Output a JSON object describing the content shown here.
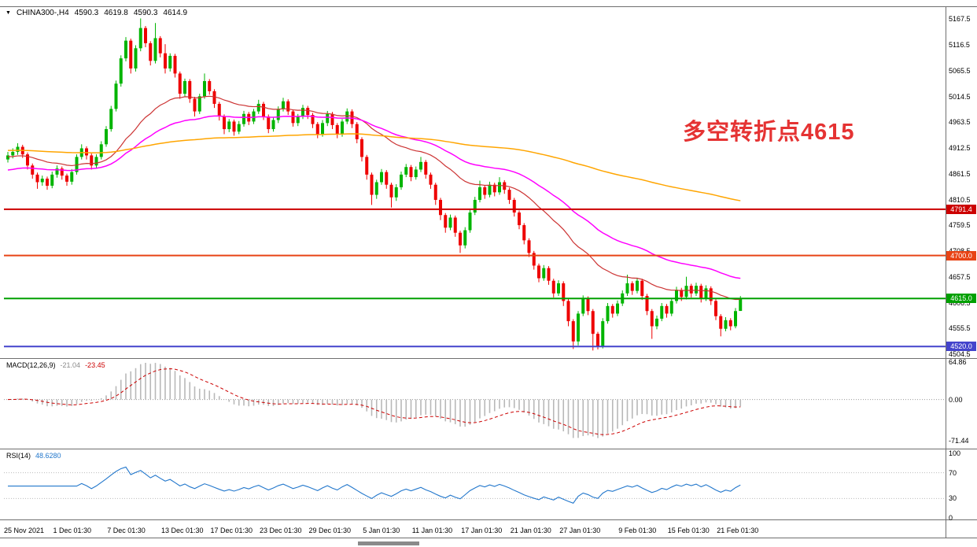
{
  "header": {
    "dropdown_glyph": "▼",
    "display": "CHINA300-,H4",
    "open": "4590.3",
    "high": "4619.8",
    "low": "4590.3",
    "close": "4614.9"
  },
  "annotation": {
    "text": "多空转折点4615",
    "color": "#e53333"
  },
  "indicators": {
    "macd": {
      "name": "MACD(12,26,9)",
      "main_value": "-21.04",
      "signal_value": "-23.45",
      "fast": 12,
      "slow": 26,
      "signal": 9,
      "y_ticks": [
        64.86,
        0,
        -71.44
      ]
    },
    "rsi": {
      "name": "RSI(14)",
      "value": "48.6280",
      "period": 14,
      "levels": [
        70,
        30
      ],
      "y_ticks": [
        100,
        70,
        30,
        0
      ]
    }
  },
  "price_axis": {
    "ticks": [
      5167.5,
      5116.5,
      5065.5,
      5014.5,
      4963.5,
      4912.5,
      4861.5,
      4810.5,
      4759.5,
      4708.5,
      4657.5,
      4606.5,
      4555.5,
      4504.5
    ]
  },
  "levels": [
    {
      "price": 4791.4,
      "label": "4791.4",
      "color": "#cc0000"
    },
    {
      "price": 4700.0,
      "label": "4700.0",
      "color": "#e84315"
    },
    {
      "price": 4615.0,
      "label": "4615.0",
      "color": "#00a000"
    },
    {
      "price": 4520.0,
      "label": "4520.0",
      "color": "#4444cc"
    }
  ],
  "time_axis": {
    "ticks": [
      {
        "i": 0,
        "label": "25 Nov 2021"
      },
      {
        "i": 10,
        "label": "1 Dec 01:30"
      },
      {
        "i": 21,
        "label": "7 Dec 01:30"
      },
      {
        "i": 32,
        "label": "13 Dec 01:30"
      },
      {
        "i": 42,
        "label": "17 Dec 01:30"
      },
      {
        "i": 52,
        "label": "23 Dec 01:30"
      },
      {
        "i": 62,
        "label": "29 Dec 01:30"
      },
      {
        "i": 73,
        "label": "5 Jan 01:30"
      },
      {
        "i": 83,
        "label": "11 Jan 01:30"
      },
      {
        "i": 93,
        "label": "17 Jan 01:30"
      },
      {
        "i": 103,
        "label": "21 Jan 01:30"
      },
      {
        "i": 113,
        "label": "27 Jan 01:30"
      },
      {
        "i": 125,
        "label": "9 Feb 01:30"
      },
      {
        "i": 135,
        "label": "15 Feb 01:30"
      },
      {
        "i": 145,
        "label": "21 Feb 01:30"
      }
    ]
  },
  "scrollbar": {
    "thumb_left": 455,
    "thumb_width": 78
  },
  "chart_data": {
    "type": "candlestick",
    "title": "CHINA300-,H4",
    "ylim": [
      4497,
      5193
    ],
    "colors": {
      "up": "#00b400",
      "down": "#ee0000",
      "macd_hist": "#b8b8b8",
      "macd_signal": "#cc0000",
      "rsi": "#2277cc"
    },
    "moving_averages": [
      {
        "name": "ma-fast",
        "period": 30,
        "seed": 4895,
        "color": "#cc3333",
        "width": 1.2
      },
      {
        "name": "ma-medium",
        "period": 55,
        "seed": 4868,
        "color": "#ff00ff",
        "width": 1.5
      },
      {
        "name": "ma-slow",
        "period": 220,
        "seed": 4908,
        "color": "#ffa500",
        "width": 1.5
      }
    ],
    "candles": [
      [
        4890,
        4905,
        4884,
        4898
      ],
      [
        4898,
        4912,
        4892,
        4905
      ],
      [
        4905,
        4922,
        4899,
        4915
      ],
      [
        4915,
        4919,
        4893,
        4900
      ],
      [
        4900,
        4904,
        4870,
        4878
      ],
      [
        4878,
        4882,
        4852,
        4860
      ],
      [
        4860,
        4864,
        4832,
        4845
      ],
      [
        4845,
        4858,
        4838,
        4852
      ],
      [
        4852,
        4856,
        4830,
        4838
      ],
      [
        4838,
        4866,
        4833,
        4860
      ],
      [
        4860,
        4878,
        4854,
        4872
      ],
      [
        4872,
        4876,
        4850,
        4858
      ],
      [
        4858,
        4862,
        4838,
        4846
      ],
      [
        4846,
        4871,
        4840,
        4865
      ],
      [
        4865,
        4900,
        4860,
        4895
      ],
      [
        4895,
        4920,
        4890,
        4912
      ],
      [
        4912,
        4916,
        4890,
        4898
      ],
      [
        4898,
        4902,
        4870,
        4878
      ],
      [
        4878,
        4900,
        4872,
        4895
      ],
      [
        4895,
        4926,
        4890,
        4920
      ],
      [
        4920,
        4956,
        4915,
        4950
      ],
      [
        4950,
        4996,
        4945,
        4990
      ],
      [
        4990,
        5046,
        4985,
        5040
      ],
      [
        5040,
        5096,
        5034,
        5090
      ],
      [
        5090,
        5132,
        5084,
        5125
      ],
      [
        5125,
        5129,
        5060,
        5070
      ],
      [
        5070,
        5116,
        5064,
        5110
      ],
      [
        5110,
        5169,
        5104,
        5150
      ],
      [
        5150,
        5154,
        5112,
        5120
      ],
      [
        5120,
        5124,
        5076,
        5085
      ],
      [
        5085,
        5160,
        5080,
        5130
      ],
      [
        5130,
        5134,
        5092,
        5100
      ],
      [
        5100,
        5118,
        5060,
        5070
      ],
      [
        5070,
        5100,
        5064,
        5095
      ],
      [
        5095,
        5099,
        5052,
        5060
      ],
      [
        5060,
        5064,
        5010,
        5020
      ],
      [
        5020,
        5050,
        5014,
        5045
      ],
      [
        5045,
        5049,
        5002,
        5010
      ],
      [
        5010,
        5014,
        4975,
        4985
      ],
      [
        4985,
        5020,
        4980,
        5015
      ],
      [
        5015,
        5060,
        5010,
        5045
      ],
      [
        5045,
        5049,
        5018,
        5025
      ],
      [
        5025,
        5029,
        4992,
        5000
      ],
      [
        5000,
        5004,
        4967,
        4975
      ],
      [
        4975,
        4979,
        4940,
        4950
      ],
      [
        4950,
        4970,
        4944,
        4965
      ],
      [
        4965,
        4969,
        4937,
        4945
      ],
      [
        4945,
        4966,
        4940,
        4960
      ],
      [
        4960,
        4986,
        4955,
        4980
      ],
      [
        4980,
        4984,
        4958,
        4965
      ],
      [
        4965,
        4990,
        4960,
        4985
      ],
      [
        4985,
        5008,
        4980,
        5000
      ],
      [
        5000,
        5004,
        4968,
        4975
      ],
      [
        4975,
        4979,
        4942,
        4950
      ],
      [
        4950,
        4973,
        4945,
        4968
      ],
      [
        4968,
        4995,
        4962,
        4990
      ],
      [
        4990,
        5012,
        4985,
        5005
      ],
      [
        5005,
        5009,
        4978,
        4985
      ],
      [
        4985,
        4989,
        4955,
        4962
      ],
      [
        4962,
        4980,
        4956,
        4975
      ],
      [
        4975,
        4998,
        4970,
        4992
      ],
      [
        4992,
        4996,
        4970,
        4978
      ],
      [
        4978,
        4982,
        4952,
        4960
      ],
      [
        4960,
        4964,
        4932,
        4940
      ],
      [
        4940,
        4968,
        4935,
        4962
      ],
      [
        4962,
        4986,
        4956,
        4980
      ],
      [
        4980,
        4984,
        4950,
        4958
      ],
      [
        4958,
        4962,
        4932,
        4940
      ],
      [
        4940,
        4970,
        4935,
        4965
      ],
      [
        4965,
        4991,
        4960,
        4985
      ],
      [
        4985,
        4989,
        4952,
        4960
      ],
      [
        4960,
        4964,
        4922,
        4930
      ],
      [
        4930,
        4934,
        4886,
        4895
      ],
      [
        4895,
        4899,
        4850,
        4860
      ],
      [
        4860,
        4864,
        4800,
        4820
      ],
      [
        4820,
        4850,
        4812,
        4845
      ],
      [
        4845,
        4871,
        4840,
        4865
      ],
      [
        4865,
        4869,
        4832,
        4840
      ],
      [
        4840,
        4844,
        4795,
        4815
      ],
      [
        4815,
        4841,
        4808,
        4835
      ],
      [
        4835,
        4866,
        4830,
        4860
      ],
      [
        4860,
        4881,
        4855,
        4875
      ],
      [
        4875,
        4879,
        4847,
        4855
      ],
      [
        4855,
        4876,
        4850,
        4870
      ],
      [
        4870,
        4895,
        4865,
        4885
      ],
      [
        4885,
        4889,
        4852,
        4860
      ],
      [
        4860,
        4864,
        4832,
        4840
      ],
      [
        4840,
        4844,
        4800,
        4810
      ],
      [
        4810,
        4814,
        4770,
        4780
      ],
      [
        4780,
        4784,
        4745,
        4755
      ],
      [
        4755,
        4781,
        4750,
        4775
      ],
      [
        4775,
        4779,
        4737,
        4745
      ],
      [
        4745,
        4749,
        4705,
        4720
      ],
      [
        4720,
        4756,
        4714,
        4750
      ],
      [
        4750,
        4791,
        4745,
        4785
      ],
      [
        4785,
        4816,
        4780,
        4810
      ],
      [
        4810,
        4848,
        4805,
        4835
      ],
      [
        4835,
        4839,
        4812,
        4820
      ],
      [
        4820,
        4846,
        4815,
        4840
      ],
      [
        4840,
        4844,
        4817,
        4825
      ],
      [
        4825,
        4855,
        4820,
        4845
      ],
      [
        4845,
        4849,
        4822,
        4830
      ],
      [
        4830,
        4834,
        4802,
        4810
      ],
      [
        4810,
        4814,
        4777,
        4785
      ],
      [
        4785,
        4789,
        4752,
        4760
      ],
      [
        4760,
        4764,
        4722,
        4730
      ],
      [
        4730,
        4734,
        4697,
        4705
      ],
      [
        4705,
        4709,
        4672,
        4680
      ],
      [
        4680,
        4684,
        4647,
        4655
      ],
      [
        4655,
        4681,
        4650,
        4675
      ],
      [
        4675,
        4679,
        4642,
        4650
      ],
      [
        4650,
        4654,
        4617,
        4625
      ],
      [
        4625,
        4651,
        4620,
        4645
      ],
      [
        4645,
        4649,
        4600,
        4610
      ],
      [
        4610,
        4614,
        4560,
        4570
      ],
      [
        4570,
        4574,
        4515,
        4530
      ],
      [
        4530,
        4590,
        4522,
        4585
      ],
      [
        4585,
        4621,
        4580,
        4615
      ],
      [
        4615,
        4619,
        4582,
        4590
      ],
      [
        4590,
        4594,
        4512,
        4545
      ],
      [
        4545,
        4549,
        4514,
        4520
      ],
      [
        4520,
        4576,
        4516,
        4570
      ],
      [
        4570,
        4606,
        4565,
        4600
      ],
      [
        4600,
        4604,
        4577,
        4585
      ],
      [
        4585,
        4611,
        4580,
        4605
      ],
      [
        4605,
        4631,
        4600,
        4625
      ],
      [
        4625,
        4662,
        4620,
        4645
      ],
      [
        4645,
        4649,
        4622,
        4630
      ],
      [
        4630,
        4656,
        4625,
        4650
      ],
      [
        4650,
        4654,
        4612,
        4620
      ],
      [
        4620,
        4624,
        4582,
        4590
      ],
      [
        4590,
        4594,
        4535,
        4560
      ],
      [
        4560,
        4581,
        4554,
        4575
      ],
      [
        4575,
        4606,
        4570,
        4600
      ],
      [
        4600,
        4604,
        4577,
        4585
      ],
      [
        4585,
        4616,
        4580,
        4610
      ],
      [
        4610,
        4638,
        4605,
        4632
      ],
      [
        4632,
        4636,
        4610,
        4618
      ],
      [
        4618,
        4658,
        4613,
        4640
      ],
      [
        4640,
        4644,
        4617,
        4625
      ],
      [
        4625,
        4646,
        4620,
        4640
      ],
      [
        4640,
        4644,
        4607,
        4615
      ],
      [
        4615,
        4641,
        4610,
        4635
      ],
      [
        4635,
        4639,
        4602,
        4610
      ],
      [
        4610,
        4614,
        4572,
        4580
      ],
      [
        4580,
        4584,
        4540,
        4555
      ],
      [
        4555,
        4578,
        4550,
        4572
      ],
      [
        4572,
        4576,
        4552,
        4560
      ],
      [
        4560,
        4596,
        4556,
        4590
      ],
      [
        4590.3,
        4619.8,
        4590.3,
        4614.9
      ]
    ]
  }
}
